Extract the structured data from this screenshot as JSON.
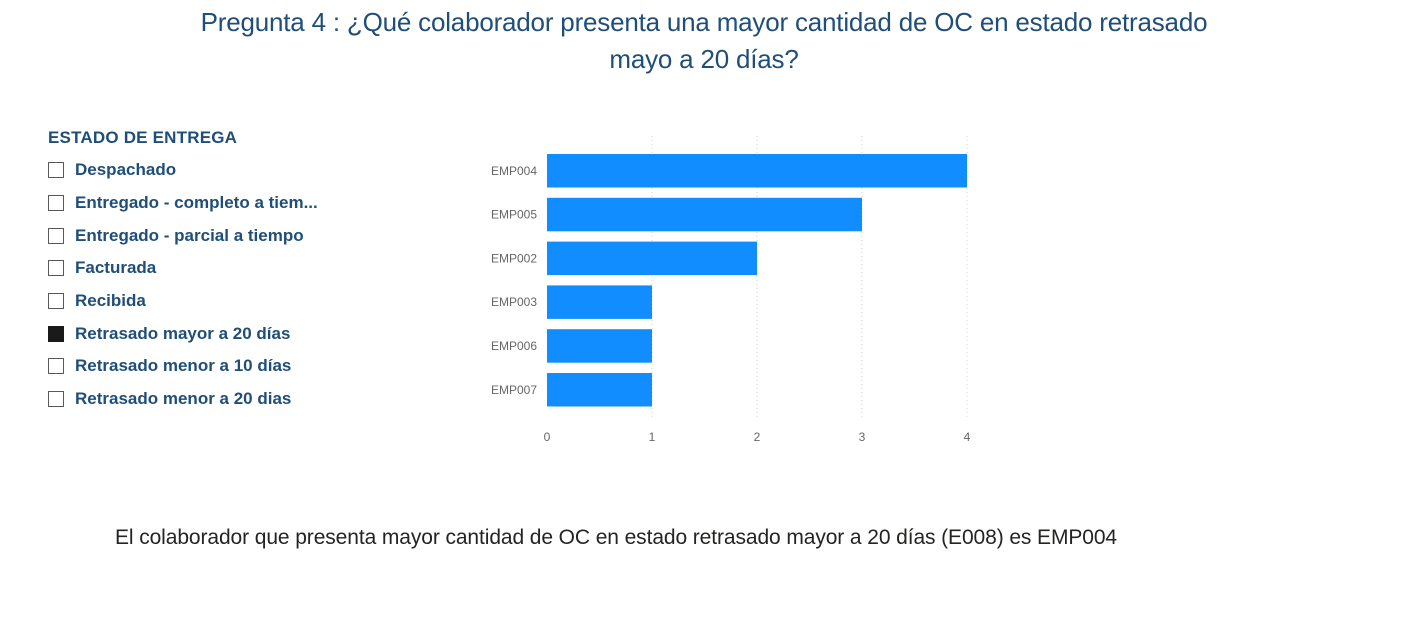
{
  "title": {
    "line1": "Pregunta 4 : ¿Qué colaborador presenta una mayor cantidad de OC en estado retrasado",
    "line2": "mayo a 20 días?"
  },
  "slicer": {
    "header": "ESTADO DE ENTREGA",
    "items": [
      {
        "label": "Despachado",
        "checked": false
      },
      {
        "label": "Entregado - completo a tiem...",
        "checked": false
      },
      {
        "label": "Entregado - parcial a tiempo",
        "checked": false
      },
      {
        "label": "Facturada",
        "checked": false
      },
      {
        "label": "Recibida",
        "checked": false
      },
      {
        "label": "Retrasado mayor a 20 días",
        "checked": true
      },
      {
        "label": "Retrasado menor a 10 días",
        "checked": false
      },
      {
        "label": "Retrasado menor a 20 dias",
        "checked": false
      }
    ]
  },
  "chart_data": {
    "type": "bar",
    "orientation": "horizontal",
    "categories": [
      "EMP004",
      "EMP005",
      "EMP002",
      "EMP003",
      "EMP006",
      "EMP007"
    ],
    "values": [
      4,
      3,
      2,
      1,
      1,
      1
    ],
    "xlim": [
      0,
      4
    ],
    "xticks": [
      0,
      1,
      2,
      3,
      4
    ],
    "grid": true,
    "bar_color": "#118dff"
  },
  "conclusion": "El colaborador que presenta mayor cantidad de OC en estado retrasado mayor a 20 días (E008) es EMP004"
}
